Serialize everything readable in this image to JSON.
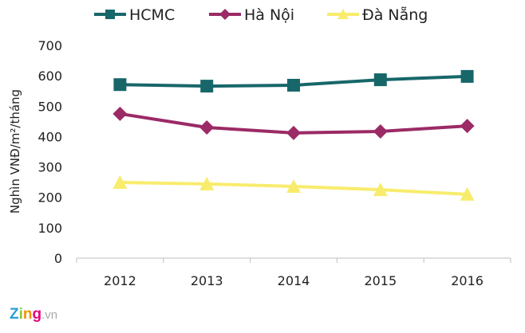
{
  "chart_data": {
    "type": "line",
    "title": "",
    "xlabel": "",
    "ylabel": "Nghìn VNĐ/m²/tháng",
    "categories": [
      "2012",
      "2013",
      "2014",
      "2015",
      "2016"
    ],
    "ylim": [
      0,
      700
    ],
    "yticks": [
      0,
      100,
      200,
      300,
      400,
      500,
      600,
      700
    ],
    "grid": false,
    "legend_position": "top",
    "series": [
      {
        "name": "HCMC",
        "color": "#17676a",
        "marker": "square",
        "values": [
          571,
          566,
          569,
          587,
          598
        ]
      },
      {
        "name": "Hà Nội",
        "color": "#9b2a66",
        "marker": "diamond",
        "values": [
          475,
          430,
          412,
          417,
          435
        ]
      },
      {
        "name": "Đà Nẵng",
        "color": "#f8ec6d",
        "marker": "triangle",
        "values": [
          249,
          244,
          236,
          225,
          210
        ]
      }
    ]
  },
  "watermark": "Zing.vn"
}
